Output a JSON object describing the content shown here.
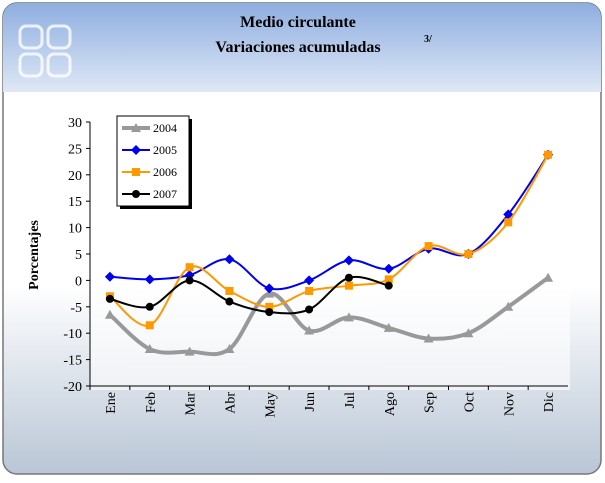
{
  "chart_data": {
    "type": "line",
    "title": "Medio circulante",
    "subtitle": "Variaciones acumuladas",
    "title_note": "3/",
    "y_label": "Porcentajes",
    "categories": [
      "Ene",
      "Feb",
      "Mar",
      "Abr",
      "May",
      "Jun",
      "Jul",
      "Ago",
      "Sep",
      "Oct",
      "Nov",
      "Dic"
    ],
    "series": [
      {
        "name": "2004",
        "color": "#999999",
        "marker": "triangle",
        "values": [
          -6.5,
          -13,
          -13.5,
          -13,
          -2.5,
          -9.5,
          -7,
          -9,
          -11,
          -10,
          -5,
          0.5
        ]
      },
      {
        "name": "2005",
        "color": "#0000ee",
        "marker": "diamond",
        "values": [
          0.7,
          0.2,
          1,
          4,
          -1.5,
          0,
          3.8,
          2.2,
          6,
          5,
          12.5,
          23.8
        ]
      },
      {
        "name": "2006",
        "color": "#ff9900",
        "marker": "square",
        "values": [
          -3,
          -8.5,
          2.5,
          -2,
          -5,
          -2,
          -1,
          0.2,
          6.5,
          5,
          11,
          23.8
        ]
      },
      {
        "name": "2007",
        "color": "#000000",
        "marker": "circle",
        "values": [
          -3.5,
          -5,
          0,
          -4,
          -6,
          -5.5,
          0.5,
          -1,
          null,
          null,
          null,
          null
        ]
      }
    ],
    "ylim": [
      -20,
      30
    ],
    "yticks": [
      -20,
      -15,
      -10,
      -5,
      0,
      5,
      10,
      15,
      20,
      25,
      30
    ],
    "grid": false,
    "legend": "top-left"
  }
}
